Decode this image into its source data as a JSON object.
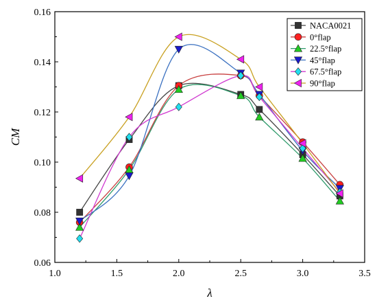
{
  "chart_data": {
    "type": "line",
    "title": "",
    "xlabel": "λ",
    "ylabel": "CM",
    "xlim": [
      1.0,
      3.5
    ],
    "ylim": [
      0.06,
      0.16
    ],
    "xticks": [
      "1.0",
      "1.5",
      "2.0",
      "2.5",
      "3.0",
      "3.5"
    ],
    "yticks": [
      "0.06",
      "0.08",
      "0.10",
      "0.12",
      "0.14",
      "0.16"
    ],
    "grid": false,
    "legend_position": "top-right",
    "x": [
      1.2,
      1.6,
      2.0,
      2.5,
      2.65,
      3.0,
      3.3
    ],
    "series": [
      {
        "name": "NACA0021",
        "color": "#333333",
        "marker": "square",
        "values": [
          0.08,
          0.109,
          0.1305,
          0.127,
          0.121,
          0.103,
          0.0865
        ]
      },
      {
        "name": "0°flap",
        "color": "#ff2020",
        "marker": "circle",
        "values": [
          0.076,
          0.098,
          0.1305,
          0.1345,
          0.1265,
          0.108,
          0.091
        ]
      },
      {
        "name": "22.5°flap",
        "color": "#22cc22",
        "marker": "triangle-up",
        "values": [
          0.074,
          0.097,
          0.129,
          0.1265,
          0.118,
          0.1015,
          0.0845
        ]
      },
      {
        "name": "45°flap",
        "color": "#1a1acc",
        "marker": "triangle-down",
        "values": [
          0.0765,
          0.0945,
          0.145,
          0.1355,
          0.127,
          0.1045,
          0.0895
        ]
      },
      {
        "name": "67.5°flap",
        "color": "#22ddee",
        "marker": "diamond",
        "values": [
          0.0695,
          0.11,
          0.122,
          0.1345,
          0.126,
          0.1055,
          0.088
        ]
      },
      {
        "name": "90°flap",
        "color": "#ee22ee",
        "marker": "triangle-left",
        "values": [
          0.0935,
          0.118,
          0.15,
          0.141,
          0.13,
          0.1075,
          0.0875
        ]
      }
    ],
    "curve_colors": [
      "#444444",
      "#c84040",
      "#2e9a6a",
      "#3a70c0",
      "#d03ad0",
      "#c8a020"
    ]
  }
}
